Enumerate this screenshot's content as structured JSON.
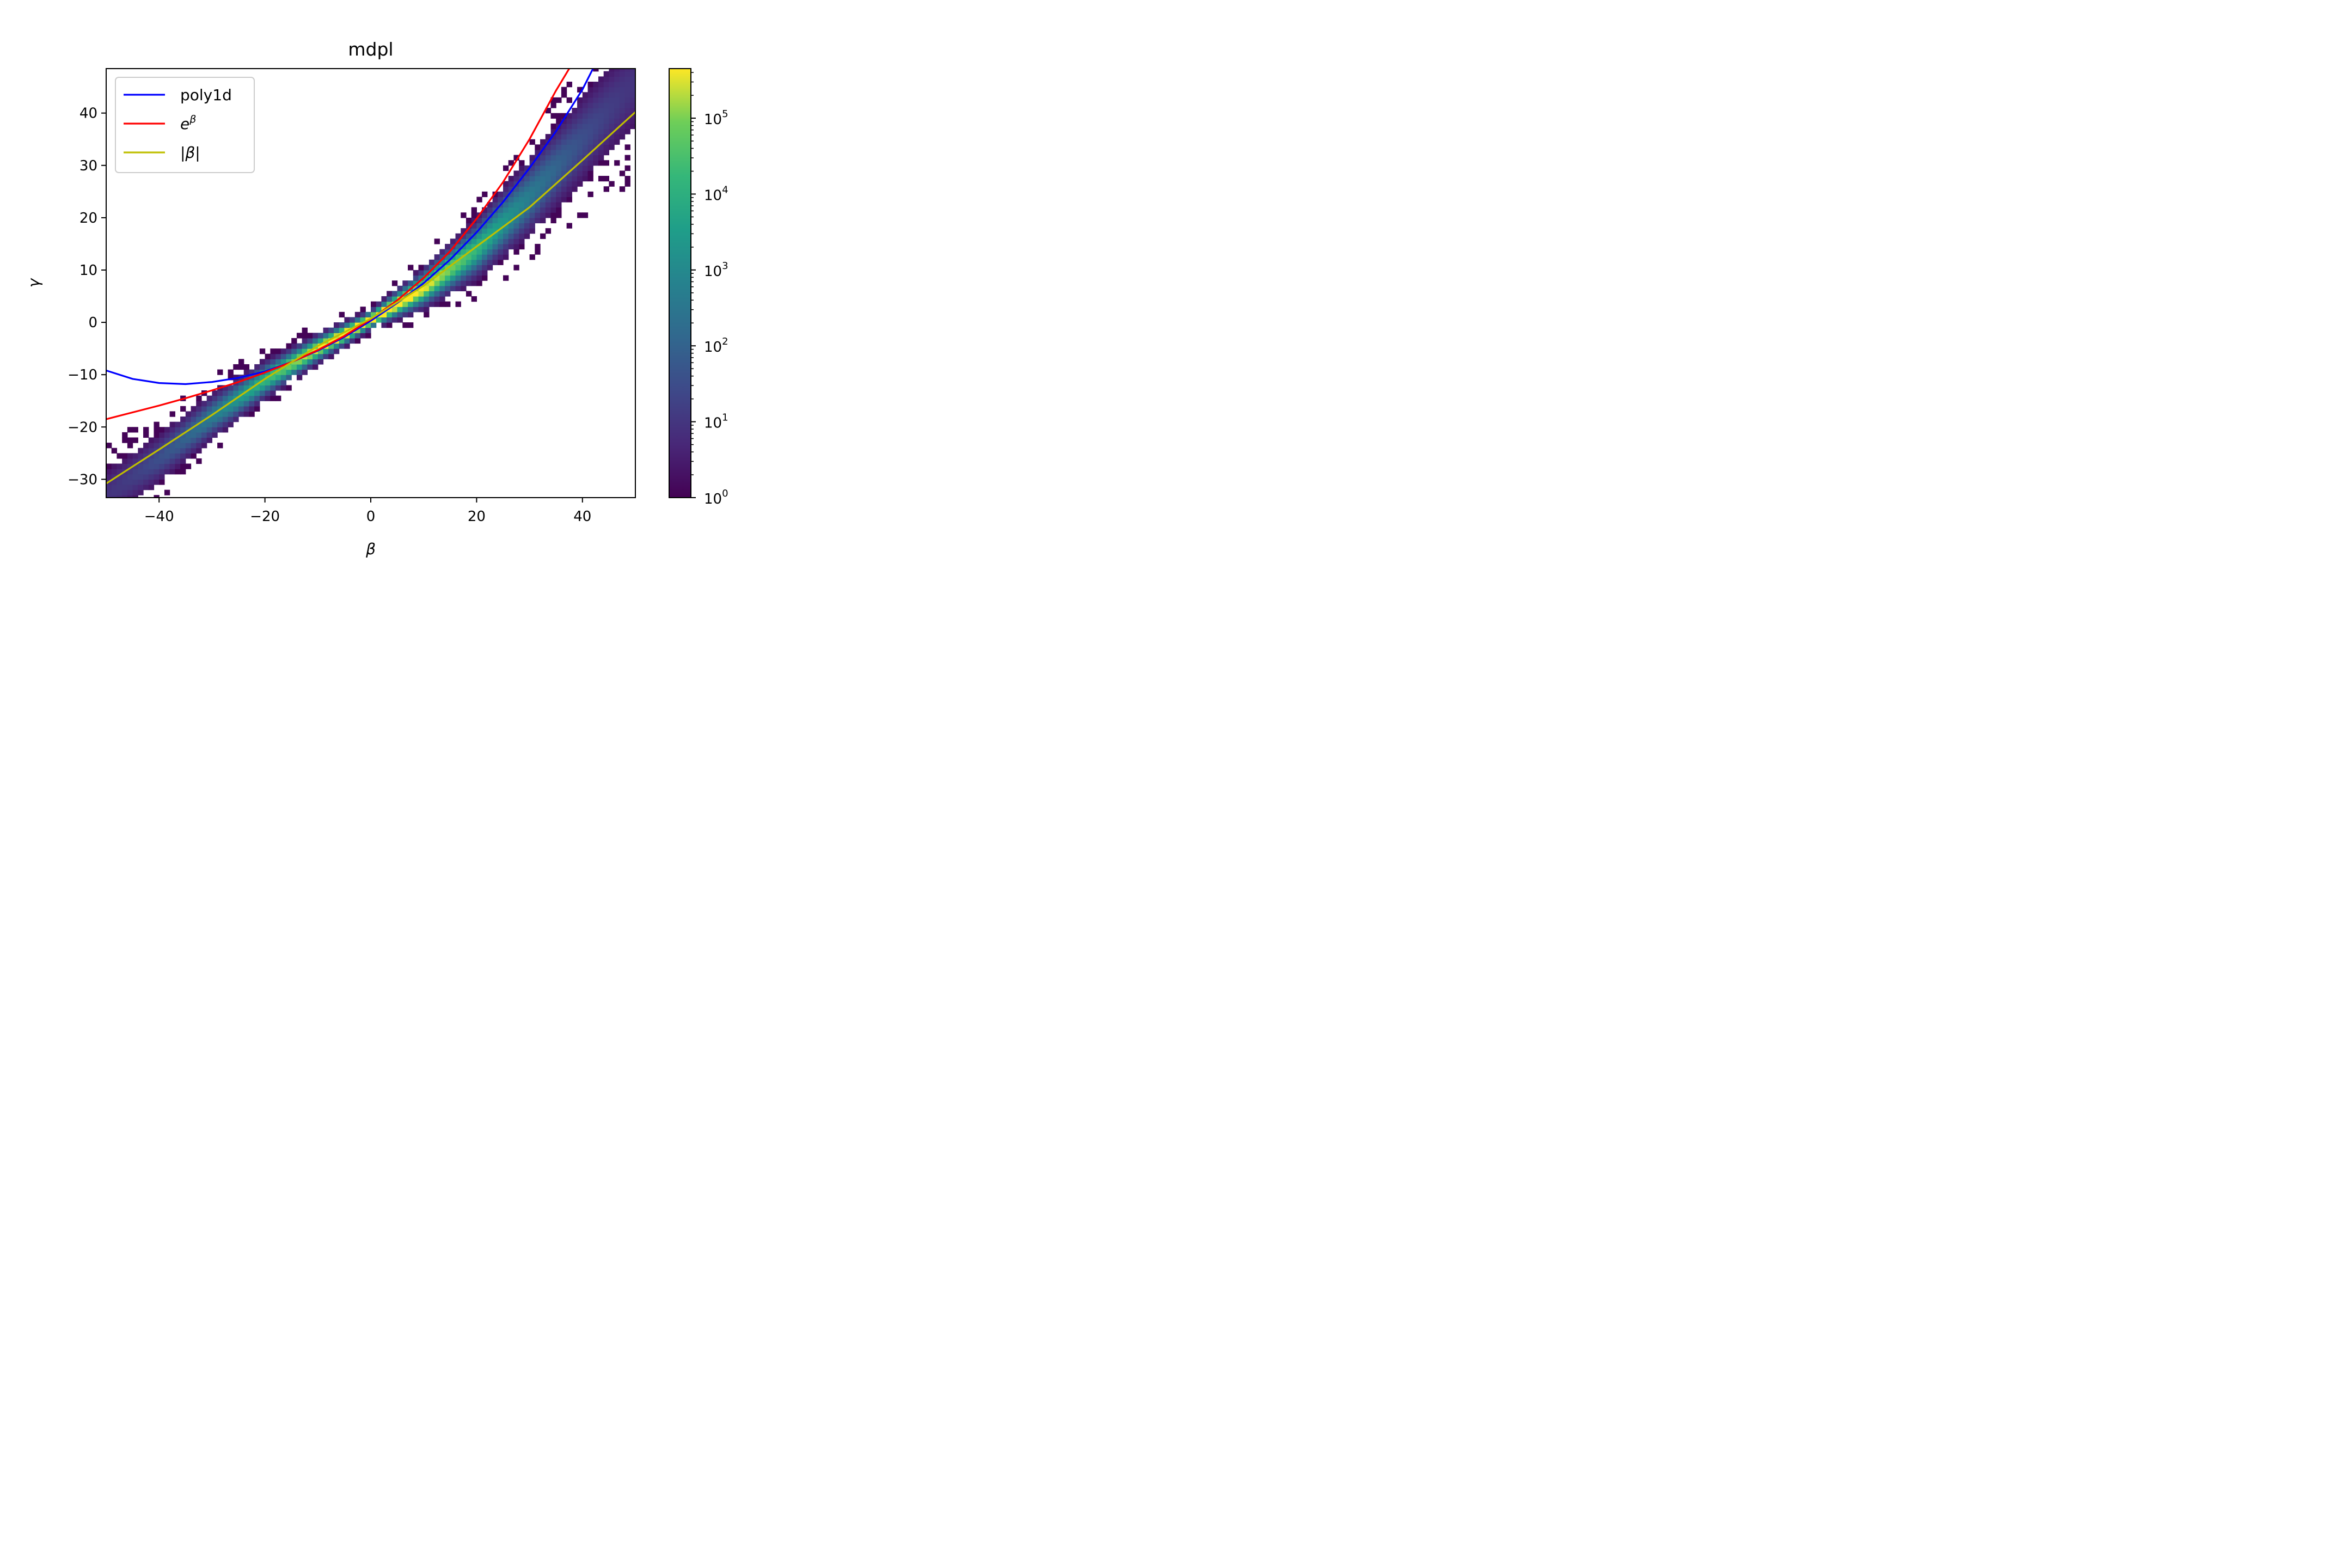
{
  "chart_data": {
    "type": "heatmap",
    "title": "mdpl",
    "xlabel": "β",
    "ylabel": "γ",
    "xlim": [
      -50,
      50
    ],
    "ylim": [
      -33.5,
      48.5
    ],
    "xticks": [
      -40,
      -20,
      0,
      20,
      40
    ],
    "xtick_labels": [
      "−40",
      "−20",
      "0",
      "20",
      "40"
    ],
    "yticks": [
      -30,
      -20,
      -10,
      0,
      10,
      20,
      30,
      40
    ],
    "ytick_labels": [
      "−30",
      "−20",
      "−10",
      "0",
      "10",
      "20",
      "30",
      "40"
    ],
    "grid": false,
    "histogram": {
      "x_bins": 100,
      "bin_width": 1.0,
      "colormap": "viridis",
      "color_scale": "log",
      "ridge_description": "2D histogram of counts; dense ridge follows gamma ≈ 0.7*beta + 0.003*beta^2 from (-50,-33) to (50,46)",
      "ridge_points": [
        [
          -50,
          -33.0
        ],
        [
          -40,
          -26.0
        ],
        [
          -30,
          -18.0
        ],
        [
          -20,
          -11.0
        ],
        [
          -10,
          -5.0
        ],
        [
          0,
          0.5
        ],
        [
          10,
          6.5
        ],
        [
          20,
          14.0
        ],
        [
          30,
          24.0
        ],
        [
          40,
          35.0
        ],
        [
          50,
          46.0
        ]
      ]
    },
    "colorbar": {
      "scale": "log",
      "range": [
        1,
        450000
      ],
      "ticks": [
        1,
        10,
        100,
        1000,
        10000,
        100000
      ],
      "tick_labels": [
        {
          "base": "10",
          "exp": "0"
        },
        {
          "base": "10",
          "exp": "1"
        },
        {
          "base": "10",
          "exp": "2"
        },
        {
          "base": "10",
          "exp": "3"
        },
        {
          "base": "10",
          "exp": "4"
        },
        {
          "base": "10",
          "exp": "5"
        }
      ]
    },
    "series": [
      {
        "name": "poly1d",
        "color": "#0000ff",
        "x": [
          -50,
          -45,
          -40,
          -35,
          -30,
          -25,
          -20,
          -15,
          -10,
          -5,
          0,
          5,
          10,
          15,
          20,
          25,
          30,
          35,
          40,
          42
        ],
        "y": [
          -9.2,
          -10.8,
          -11.6,
          -11.8,
          -11.4,
          -10.6,
          -9.4,
          -7.6,
          -5.4,
          -2.8,
          0.3,
          3.7,
          7.5,
          12.0,
          17.2,
          23.0,
          29.5,
          36.5,
          44.5,
          48.5
        ]
      },
      {
        "name": "e^β",
        "color": "#ff0000",
        "x": [
          -50,
          -45,
          -40,
          -35,
          -30,
          -25,
          -20,
          -15,
          -10,
          -5,
          0,
          5,
          10,
          15,
          20,
          25,
          30,
          35,
          37.5
        ],
        "y": [
          -18.5,
          -17.2,
          -15.9,
          -14.5,
          -13.0,
          -11.4,
          -9.6,
          -7.6,
          -5.3,
          -2.6,
          0.6,
          4.2,
          8.5,
          13.6,
          19.8,
          26.8,
          35.0,
          44.3,
          48.5
        ]
      },
      {
        "name": "|β|",
        "color": "#bfbf00",
        "x": [
          -50,
          -40,
          -30,
          -20,
          -10,
          0,
          10,
          20,
          30,
          40,
          50
        ],
        "y": [
          -30.8,
          -24.3,
          -17.7,
          -10.8,
          -4.5,
          0.7,
          7.0,
          14.5,
          22.0,
          31.0,
          40.2
        ]
      }
    ],
    "legend": {
      "placement": "top-left",
      "entries": [
        {
          "label": "poly1d",
          "color": "#0000ff"
        },
        {
          "label": "e",
          "sup": "β",
          "color": "#ff0000"
        },
        {
          "label": "|β|",
          "color": "#bfbf00"
        }
      ]
    }
  }
}
